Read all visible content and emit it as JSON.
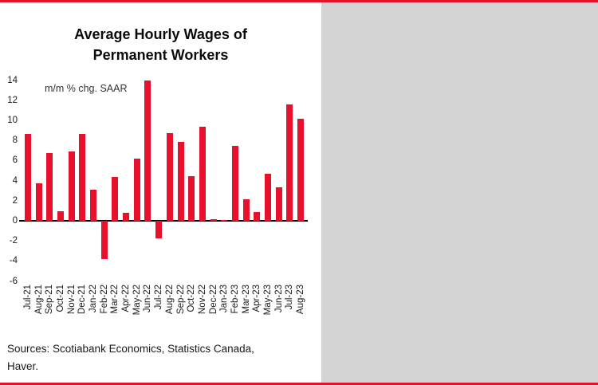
{
  "page": {
    "accent_red": "#e8112d",
    "panel_background": "#ffffff",
    "outside_background": "#d4d4d4"
  },
  "chart": {
    "title_line1": "Average Hourly Wages of",
    "title_line2": "Permanent Workers",
    "annotation": "m/m % chg. SAAR",
    "source_line1": "Sources: Scotiabank Economics, Statistics Canada,",
    "source_line2": "Haver."
  },
  "chart_data": {
    "type": "bar",
    "title": "Average Hourly Wages of Permanent Workers",
    "ylabel": "m/m % chg. SAAR",
    "xlabel": "",
    "ylim": [
      -6,
      14
    ],
    "yticks": [
      14,
      12,
      10,
      8,
      6,
      4,
      2,
      0,
      -2,
      -4,
      -6
    ],
    "grid": false,
    "legend": "none",
    "bar_color": "#e8112d",
    "categories": [
      "Jul-21",
      "Aug-21",
      "Sep-21",
      "Oct-21",
      "Nov-21",
      "Dec-21",
      "Jan-22",
      "Feb-22",
      "Mar-22",
      "Apr-22",
      "May-22",
      "Jun-22",
      "Jul-22",
      "Aug-22",
      "Sep-22",
      "Oct-22",
      "Nov-22",
      "Dec-22",
      "Jan-23",
      "Feb-23",
      "Mar-23",
      "Apr-23",
      "May-23",
      "Jun-23",
      "Jul-23",
      "Aug-23"
    ],
    "values": [
      8.7,
      3.8,
      6.8,
      1.0,
      6.9,
      8.7,
      3.1,
      -3.8,
      4.4,
      0.8,
      6.2,
      14.0,
      -1.7,
      8.8,
      7.9,
      4.5,
      9.4,
      0.2,
      0.1,
      7.5,
      2.2,
      0.9,
      4.7,
      3.4,
      11.6,
      10.2
    ]
  }
}
